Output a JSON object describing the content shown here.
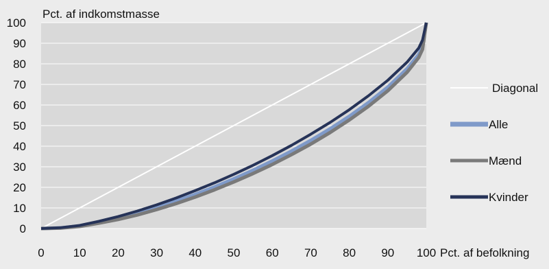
{
  "chart_data": {
    "type": "line",
    "ylabel": "Pct. af indkomstmasse",
    "xlabel": "Pct. af befolkning",
    "xlim": [
      0,
      100
    ],
    "ylim": [
      0,
      100
    ],
    "x_ticks": [
      0,
      10,
      20,
      30,
      40,
      50,
      60,
      70,
      80,
      90,
      100
    ],
    "y_ticks": [
      0,
      10,
      20,
      30,
      40,
      50,
      60,
      70,
      80,
      90,
      100
    ],
    "grid": "horizontal",
    "legend_position": "right",
    "x": [
      0,
      5,
      10,
      15,
      20,
      25,
      30,
      35,
      40,
      45,
      50,
      55,
      60,
      65,
      70,
      75,
      80,
      85,
      90,
      95,
      98,
      99,
      100
    ],
    "series": [
      {
        "name": "Diagonal",
        "color": "#ffffff",
        "values": [
          0,
          5,
          10,
          15,
          20,
          25,
          30,
          35,
          40,
          45,
          50,
          55,
          60,
          65,
          70,
          75,
          80,
          85,
          90,
          95,
          98,
          99,
          100
        ]
      },
      {
        "name": "Alle",
        "color": "#7f9ac9",
        "values": [
          0,
          0.3,
          1.2,
          3.0,
          5.0,
          7.4,
          10.2,
          13.3,
          16.6,
          20.2,
          24.1,
          28.3,
          32.8,
          37.6,
          42.8,
          48.4,
          54.5,
          61.2,
          68.7,
          77.6,
          84.5,
          88.5,
          100
        ]
      },
      {
        "name": "Mænd",
        "color": "#7a7a7a",
        "values": [
          0,
          0.2,
          1.0,
          2.6,
          4.4,
          6.6,
          9.2,
          12.1,
          15.3,
          18.8,
          22.6,
          26.7,
          31.1,
          35.9,
          41.0,
          46.6,
          52.7,
          59.4,
          66.9,
          75.9,
          83.0,
          87.0,
          100
        ]
      },
      {
        "name": "Kvinder",
        "color": "#263358",
        "values": [
          0,
          0.4,
          1.5,
          3.5,
          5.8,
          8.5,
          11.5,
          14.8,
          18.4,
          22.2,
          26.3,
          30.7,
          35.4,
          40.4,
          45.8,
          51.5,
          57.7,
          64.5,
          72.0,
          80.8,
          87.6,
          91.5,
          100
        ]
      }
    ]
  }
}
